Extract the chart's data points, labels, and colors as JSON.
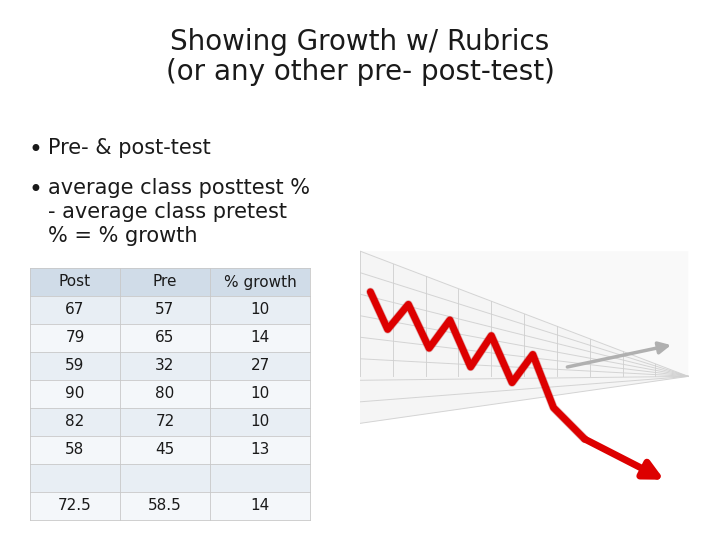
{
  "title_line1": "Showing Growth w/ Rubrics",
  "title_line2": "(or any other pre- post-test)",
  "bullet1": "Pre- & post-test",
  "bullet2_line1": "average class posttest %",
  "bullet2_line2": "- average class pretest",
  "bullet2_line3": "% = % growth",
  "table_headers": [
    "Post",
    "Pre",
    "% growth"
  ],
  "table_rows": [
    [
      "67",
      "57",
      "10"
    ],
    [
      "79",
      "65",
      "14"
    ],
    [
      "59",
      "32",
      "27"
    ],
    [
      "90",
      "80",
      "10"
    ],
    [
      "82",
      "72",
      "10"
    ],
    [
      "58",
      "45",
      "13"
    ],
    [
      "",
      "",
      ""
    ],
    [
      "72.5",
      "58.5",
      "14"
    ]
  ],
  "bg_color": "#ffffff",
  "table_header_bg": "#d0dce8",
  "table_even_bg": "#e8eef4",
  "table_odd_bg": "#f4f7fa",
  "title_fontsize": 20,
  "bullet_fontsize": 15,
  "table_fontsize": 11,
  "text_color": "#1a1a1a",
  "grid_color": "#c8c8c8",
  "red_color": "#cc0000",
  "shadow_color": "#b0b0b0"
}
